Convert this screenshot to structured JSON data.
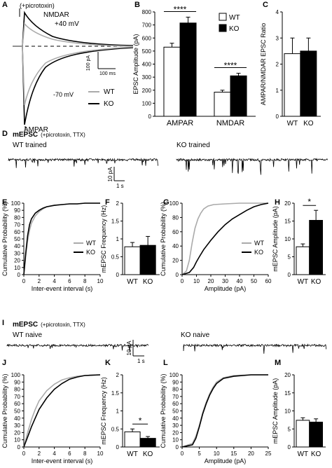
{
  "panel_letters": {
    "A": "A",
    "B": "B",
    "C": "C",
    "D": "D",
    "E": "E",
    "F": "F",
    "G": "G",
    "H": "H",
    "I": "I",
    "J": "J",
    "K": "K",
    "L": "L",
    "M": "M"
  },
  "colors": {
    "wt_trace": "#aaaaaa",
    "ko_trace": "#000000",
    "wt_bar": "#ffffff",
    "ko_bar": "#000000",
    "axis": "#000000"
  },
  "panel_a": {
    "condition": "(+picrotoxin)",
    "nmdar_label": "NMDAR",
    "plus40_label": "+40 mV",
    "minus70_label": "-70 mV",
    "ampar_label": "AMPAR",
    "scale_y": "100 pA",
    "scale_x": "100 ms",
    "legend": [
      {
        "name": "WT",
        "color": "#aaaaaa"
      },
      {
        "name": "KO",
        "color": "#000000"
      }
    ]
  },
  "trace_d": {
    "title_bold": "mEPSC",
    "title_rest": "(+picrotoxin, TTX)",
    "wt_label": "WT  trained",
    "ko_label": "KO  trained",
    "scale_y": "10 pA",
    "scale_x": "1 s"
  },
  "trace_i": {
    "title_bold": "mEPSC",
    "title_rest": "(+picrotoxin, TTX)",
    "wt_label": "WT  naive",
    "ko_label": "KO  naive",
    "scale_y": "10 pA",
    "scale_x": "1 s"
  },
  "chart_data": [
    {
      "panel": "B",
      "type": "bar",
      "ylabel": "EPSC Amplitude (pA)",
      "categories": [
        "AMPAR",
        "NMDAR"
      ],
      "ylim": [
        0,
        800
      ],
      "yticks": [
        0,
        100,
        200,
        300,
        400,
        500,
        600,
        700,
        800
      ],
      "series": [
        {
          "name": "WT",
          "values": [
            530,
            185
          ],
          "errors": [
            30,
            15
          ]
        },
        {
          "name": "KO",
          "values": [
            715,
            310
          ],
          "errors": [
            45,
            20
          ]
        }
      ],
      "significance": [
        {
          "category": "AMPAR",
          "label": "****"
        },
        {
          "category": "NMDAR",
          "label": "****"
        }
      ],
      "legend": "top-right"
    },
    {
      "panel": "C",
      "type": "bar",
      "ylabel": "AMPAR/NMDAR EPSC Ratio",
      "categories": [
        "WT",
        "KO"
      ],
      "ylim": [
        0,
        4
      ],
      "yticks": [
        0,
        1,
        2,
        3,
        4
      ],
      "values": [
        2.4,
        2.5
      ],
      "errors": [
        0.6,
        0.5
      ]
    },
    {
      "panel": "E",
      "type": "line",
      "ylabel": "Cumulative Probability (%)",
      "xlabel": "Inter-event interval (s)",
      "xlim": [
        0,
        10
      ],
      "ylim": [
        0,
        100
      ],
      "xticks": [
        0,
        2,
        4,
        6,
        8,
        10
      ],
      "yticks": [
        0,
        10,
        20,
        30,
        40,
        50,
        60,
        70,
        80,
        90,
        100
      ],
      "series": [
        {
          "name": "WT",
          "x": [
            0,
            0.25,
            0.5,
            0.75,
            1,
            1.5,
            2,
            2.5,
            3,
            4,
            5,
            6,
            7,
            8,
            10
          ],
          "y": [
            0,
            25,
            48,
            62,
            72,
            82,
            88,
            92,
            95,
            97,
            98,
            99,
            99,
            100,
            100
          ]
        },
        {
          "name": "KO",
          "x": [
            0,
            0.25,
            0.5,
            0.75,
            1,
            1.5,
            2,
            2.5,
            3,
            4,
            5,
            6,
            7,
            8,
            10
          ],
          "y": [
            0,
            30,
            55,
            70,
            78,
            86,
            90,
            93,
            95,
            97,
            98,
            99,
            99,
            100,
            100
          ]
        }
      ],
      "legend": "center-right"
    },
    {
      "panel": "F",
      "type": "bar",
      "ylabel": "mEPSC Frequency (Hz)",
      "categories": [
        "WT",
        "KO"
      ],
      "ylim": [
        0,
        2
      ],
      "yticks": [
        0,
        0.5,
        1,
        1.5,
        2
      ],
      "ytick_labels": [
        "0",
        "0.5",
        "1",
        "1.5",
        "2"
      ],
      "values": [
        0.78,
        0.82
      ],
      "errors": [
        0.12,
        0.25
      ]
    },
    {
      "panel": "G",
      "type": "line",
      "ylabel": "Cumulative Probability (%)",
      "xlabel": "Amplitude (pA)",
      "xlim": [
        0,
        60
      ],
      "ylim": [
        0,
        100
      ],
      "xticks": [
        0,
        10,
        20,
        30,
        40,
        50,
        60
      ],
      "yticks": [
        0,
        20,
        40,
        60,
        80,
        100
      ],
      "series": [
        {
          "name": "WT",
          "x": [
            0,
            3,
            5,
            7,
            9,
            11,
            13,
            15,
            18,
            22,
            30,
            40,
            60
          ],
          "y": [
            0,
            5,
            20,
            45,
            65,
            78,
            86,
            92,
            96,
            98,
            99,
            100,
            100
          ]
        },
        {
          "name": "KO",
          "x": [
            0,
            5,
            8,
            10,
            12,
            15,
            20,
            25,
            30,
            35,
            40,
            45,
            50,
            55,
            60
          ],
          "y": [
            0,
            3,
            10,
            18,
            25,
            35,
            48,
            60,
            70,
            78,
            84,
            90,
            95,
            98,
            100
          ]
        }
      ],
      "legend": "center-right"
    },
    {
      "panel": "H",
      "type": "bar",
      "ylabel": "mEPSC Amplitude (pA)",
      "categories": [
        "WT",
        "KO"
      ],
      "ylim": [
        0,
        20
      ],
      "yticks": [
        0,
        5,
        10,
        15,
        20
      ],
      "values": [
        7.8,
        15.2
      ],
      "errors": [
        0.8,
        2.8
      ],
      "significance": [
        {
          "label": "*"
        }
      ]
    },
    {
      "panel": "J",
      "type": "line",
      "ylabel": "Cumulative Probability (%)",
      "xlabel": "Inter-event interval (s)",
      "xlim": [
        0,
        10
      ],
      "ylim": [
        0,
        100
      ],
      "xticks": [
        0,
        2,
        4,
        6,
        8,
        10
      ],
      "yticks": [
        0,
        10,
        20,
        30,
        40,
        50,
        60,
        70,
        80,
        90,
        100
      ],
      "series": [
        {
          "name": "WT",
          "x": [
            0,
            0.5,
            1,
            1.5,
            2,
            3,
            4,
            5,
            6,
            7,
            8,
            10
          ],
          "y": [
            0,
            20,
            38,
            52,
            64,
            78,
            87,
            93,
            96,
            98,
            99,
            100
          ]
        },
        {
          "name": "KO",
          "x": [
            0,
            0.5,
            1,
            1.5,
            2,
            3,
            4,
            5,
            6,
            7,
            8,
            10
          ],
          "y": [
            0,
            14,
            28,
            40,
            52,
            68,
            80,
            88,
            94,
            97,
            99,
            100
          ]
        }
      ]
    },
    {
      "panel": "K",
      "type": "bar",
      "ylabel": "mEPSC Frequency (Hz)",
      "categories": [
        "WT",
        "KO"
      ],
      "ylim": [
        0,
        2
      ],
      "yticks": [
        0,
        0.5,
        1,
        1.5,
        2
      ],
      "ytick_labels": [
        "0",
        "0.5",
        "1",
        "1.5",
        "2"
      ],
      "values": [
        0.42,
        0.24
      ],
      "errors": [
        0.08,
        0.05
      ],
      "significance": [
        {
          "label": "*"
        }
      ]
    },
    {
      "panel": "L",
      "type": "line",
      "ylabel": "Cumulative Probability (%)",
      "xlabel": "Amplitude (pA)",
      "xlim": [
        0,
        25
      ],
      "ylim": [
        0,
        100
      ],
      "xticks": [
        0,
        5,
        10,
        15,
        20,
        25
      ],
      "yticks": [
        0,
        10,
        20,
        30,
        40,
        50,
        60,
        70,
        80,
        90,
        100
      ],
      "series": [
        {
          "name": "WT",
          "x": [
            0,
            3,
            4,
            5,
            6,
            7,
            8,
            9,
            10,
            12,
            15,
            20,
            25
          ],
          "y": [
            0,
            5,
            15,
            30,
            48,
            62,
            74,
            83,
            90,
            96,
            99,
            100,
            100
          ]
        },
        {
          "name": "KO",
          "x": [
            0,
            3,
            4,
            5,
            6,
            7,
            8,
            9,
            10,
            12,
            15,
            20,
            25
          ],
          "y": [
            0,
            3,
            12,
            28,
            46,
            60,
            72,
            81,
            88,
            95,
            98,
            100,
            100
          ]
        }
      ]
    },
    {
      "panel": "M",
      "type": "bar",
      "ylabel": "mEPSC Amplitude  (pA)",
      "categories": [
        "WT",
        "KO"
      ],
      "ylim": [
        0,
        20
      ],
      "yticks": [
        0,
        5,
        10,
        15,
        20
      ],
      "values": [
        7.4,
        6.9
      ],
      "errors": [
        0.7,
        0.9
      ]
    }
  ]
}
